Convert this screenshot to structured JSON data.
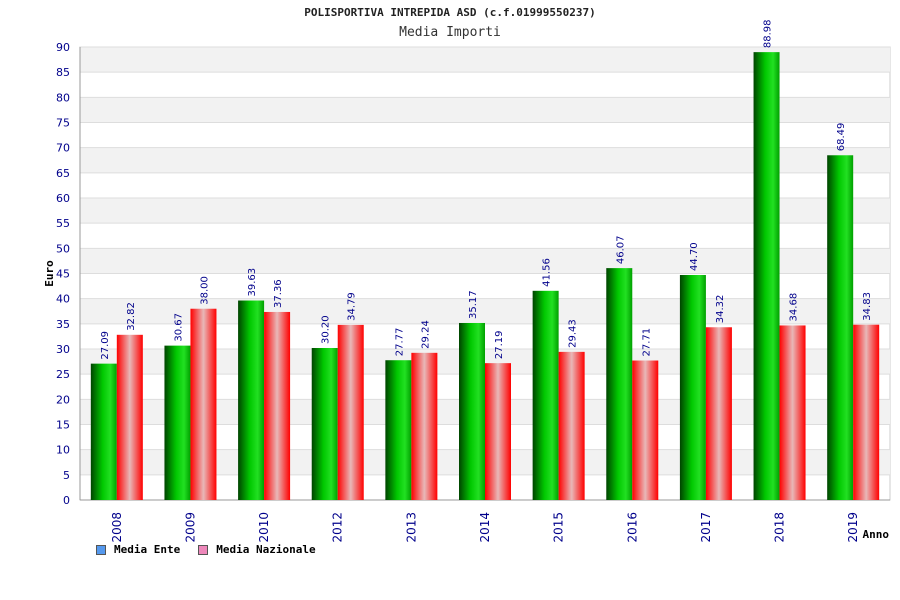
{
  "chart_data": {
    "type": "bar",
    "title": "POLISPORTIVA INTREPIDA ASD (c.f.01999550237)",
    "subtitle": "Media Importi",
    "xlabel": "Anno",
    "ylabel": "Euro",
    "ylim": [
      0,
      90
    ],
    "ytick_step": 5,
    "grid": true,
    "legend_position": "bottom-left",
    "categories": [
      "2008",
      "2009",
      "2010",
      "2012",
      "2013",
      "2014",
      "2015",
      "2016",
      "2017",
      "2018",
      "2019"
    ],
    "series": [
      {
        "name": "Media Ente",
        "color": "#00b000",
        "legend_color": "#5599ee",
        "values": [
          27.09,
          30.67,
          39.63,
          30.2,
          27.77,
          35.17,
          41.56,
          46.07,
          44.7,
          88.98,
          68.49
        ],
        "labels": [
          "27.09",
          "30.67",
          "39.63",
          "30.20",
          "27.77",
          "35.17",
          "41.56",
          "46.07",
          "44.70",
          "88.98",
          "68.49"
        ]
      },
      {
        "name": "Media Nazionale",
        "color": "#ee0000",
        "legend_color": "#ee88bb",
        "values": [
          32.82,
          38.0,
          37.36,
          34.79,
          29.24,
          27.19,
          29.43,
          27.71,
          34.32,
          34.68,
          34.83
        ],
        "labels": [
          "32.82",
          "38.00",
          "37.36",
          "34.79",
          "29.24",
          "27.19",
          "29.43",
          "27.71",
          "34.32",
          "34.68",
          "34.83"
        ]
      }
    ]
  }
}
